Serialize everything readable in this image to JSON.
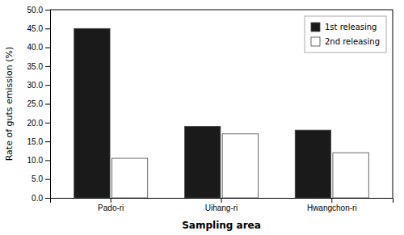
{
  "chart_data": {
    "type": "bar",
    "categories": [
      "Pado-ri",
      "Uihang-ri",
      "Hwangchon-ri"
    ],
    "series": [
      {
        "name": "1st releasing",
        "color": "#1a1a1a",
        "values": [
          45.0,
          19.0,
          18.0
        ]
      },
      {
        "name": "2nd releasing",
        "color": "#ffffff",
        "values": [
          10.5,
          17.0,
          12.0
        ]
      }
    ],
    "xlabel": "Sampling area",
    "ylabel": "Rate of guts emission (%)",
    "ylim": [
      0.0,
      50.0
    ],
    "yticks": [
      {
        "value": 0.0,
        "label": "0.0"
      },
      {
        "value": 5.0,
        "label": "5.0"
      },
      {
        "value": 10.0,
        "label": "10.0"
      },
      {
        "value": 15.0,
        "label": "15.0"
      },
      {
        "value": 20.0,
        "label": "20.0"
      },
      {
        "value": 25.0,
        "label": "25.0"
      },
      {
        "value": 30.0,
        "label": "30.0"
      },
      {
        "value": 35.0,
        "label": "35.0"
      },
      {
        "value": 40.0,
        "label": "40.0"
      },
      {
        "value": 45.0,
        "label": "45.0"
      },
      {
        "value": 50.0,
        "label": "50.0"
      }
    ],
    "grid": false,
    "legend": "upper right"
  }
}
